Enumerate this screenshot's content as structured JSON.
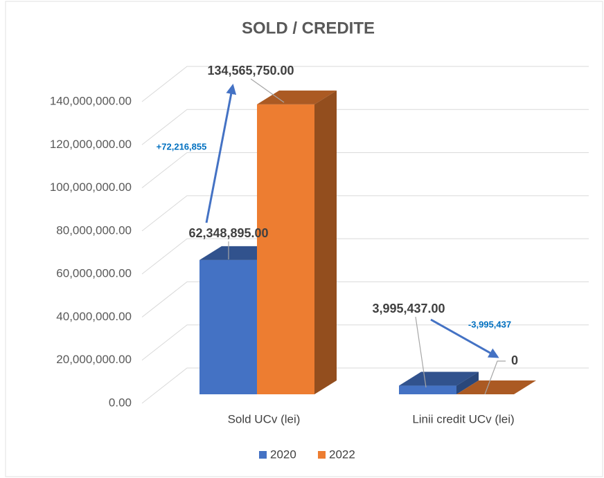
{
  "chart_data": {
    "type": "bar3d",
    "title": "SOLD / CREDITE",
    "categories": [
      "Sold UCv (lei)",
      "Linii credit UCv (lei)"
    ],
    "series": [
      {
        "name": "2020",
        "color": "#4472c4",
        "values": [
          62348895,
          3995437
        ],
        "value_labels": [
          "62,348,895.00",
          "3,995,437.00"
        ]
      },
      {
        "name": "2022",
        "color": "#ed7d31",
        "values": [
          134565750,
          0
        ],
        "value_labels": [
          "134,565,750.00",
          "0"
        ]
      }
    ],
    "ylim": [
      0,
      140000000
    ],
    "yticks": [
      {
        "value": 0,
        "label": "0.00"
      },
      {
        "value": 20000000,
        "label": "20,000,000.00"
      },
      {
        "value": 40000000,
        "label": "40,000,000.00"
      },
      {
        "value": 60000000,
        "label": "60,000,000.00"
      },
      {
        "value": 80000000,
        "label": "80,000,000.00"
      },
      {
        "value": 100000000,
        "label": "100,000,000.00"
      },
      {
        "value": 120000000,
        "label": "120,000,000.00"
      },
      {
        "value": 140000000,
        "label": "140,000,000.00"
      }
    ],
    "grid": true,
    "legend": "bottom",
    "annotations": [
      "+72,216,855",
      "-3,995,437"
    ]
  }
}
